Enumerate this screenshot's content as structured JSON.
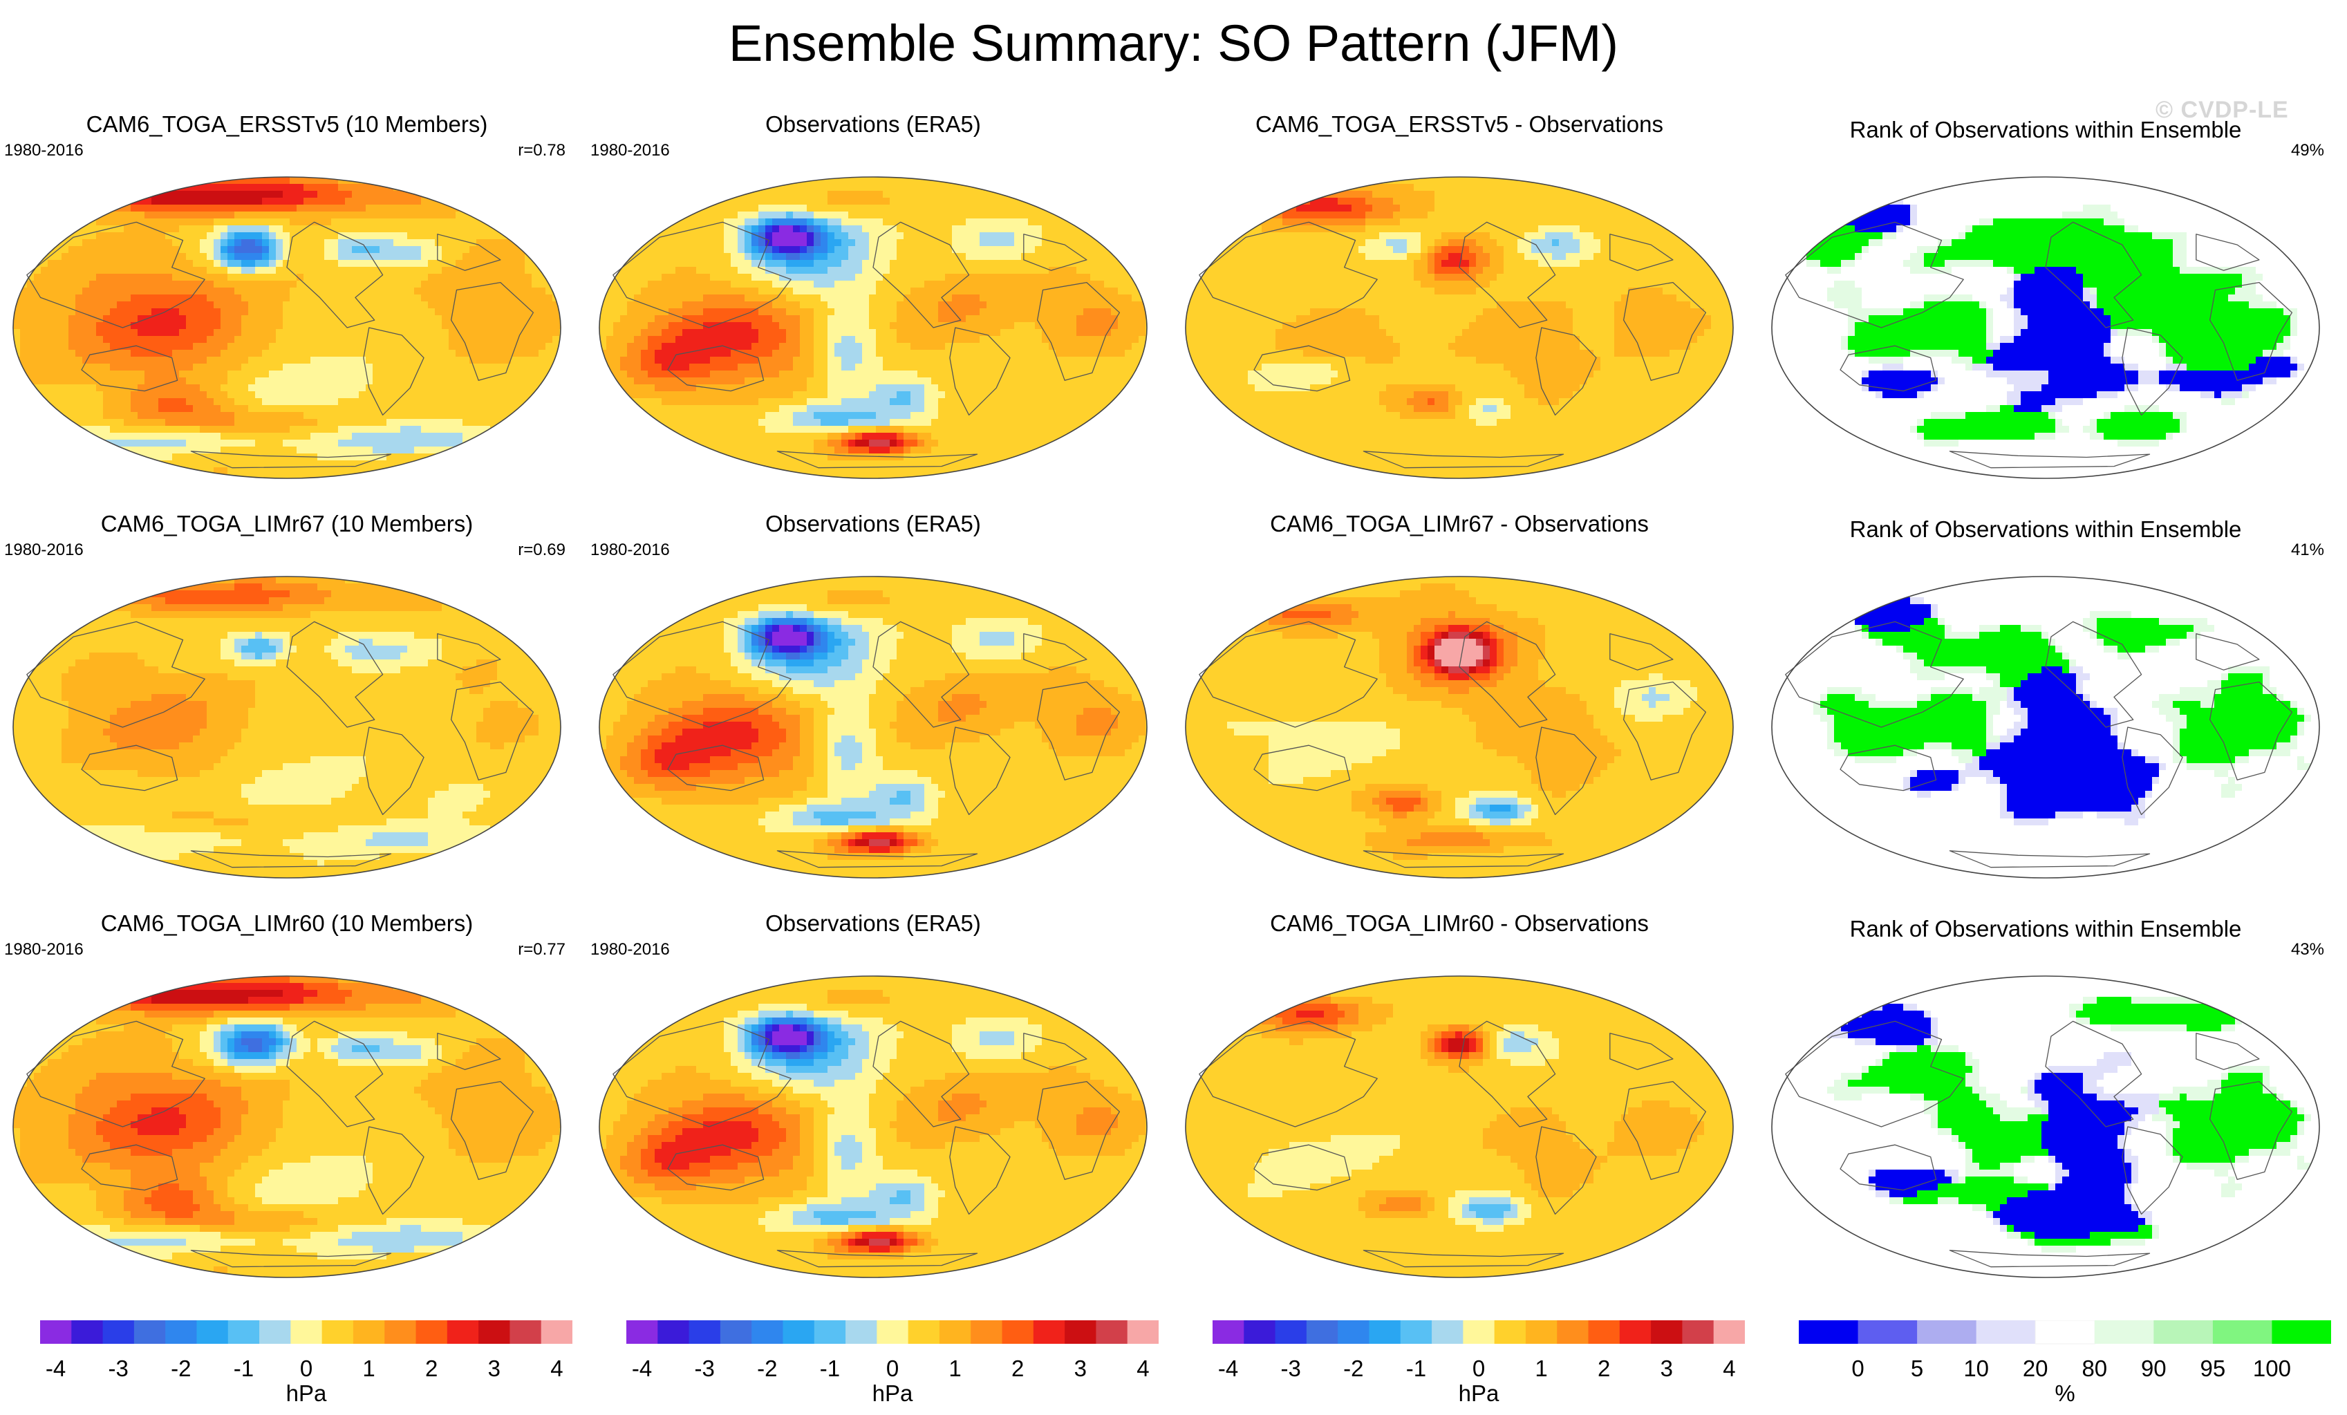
{
  "title": "Ensemble Summary: SO Pattern (JFM)",
  "watermark": "© CVDP-LE",
  "palette": {
    "hpa": [
      "#8a2be2",
      "#3b1bd9",
      "#2a3ee8",
      "#3f6fe0",
      "#2f86ee",
      "#2aa6f2",
      "#58c0f4",
      "#a8d8ee",
      "#fff79a",
      "#ffd12c",
      "#ffb41f",
      "#ff8e1c",
      "#ff5e12",
      "#f0221a",
      "#cc0f12",
      "#d2404a",
      "#f7a7a7"
    ],
    "pct": [
      "#0000f2",
      "#5e5ef0",
      "#adadf0",
      "#e0e0fa",
      "#ffffff",
      "#e3fbe3",
      "#b8f5b8",
      "#80f580",
      "#00f500"
    ]
  },
  "chart_data": {
    "type": "map_panel_grid",
    "rows": [
      {
        "model": {
          "title": "CAM6_TOGA_ERSSTv5 (10 Members)",
          "period": "1980-2016",
          "stat": "r=0.78",
          "variant": 0
        },
        "obs": {
          "title": "Observations (ERA5)",
          "period": "1980-2016",
          "variant": 1
        },
        "diff": {
          "title": "CAM6_TOGA_ERSSTv5 - Observations",
          "variant": 2
        },
        "rank": {
          "title": "Rank of Observations within Ensemble",
          "stat": "49%",
          "variant": 3
        }
      },
      {
        "model": {
          "title": "CAM6_TOGA_LIMr67 (10 Members)",
          "period": "1980-2016",
          "stat": "r=0.69",
          "variant": 4
        },
        "obs": {
          "title": "Observations (ERA5)",
          "period": "1980-2016",
          "variant": 1
        },
        "diff": {
          "title": "CAM6_TOGA_LIMr67 - Observations",
          "variant": 5
        },
        "rank": {
          "title": "Rank of Observations within Ensemble",
          "stat": "41%",
          "variant": 6
        }
      },
      {
        "model": {
          "title": "CAM6_TOGA_LIMr60 (10 Members)",
          "period": "1980-2016",
          "stat": "r=0.77",
          "variant": 7
        },
        "obs": {
          "title": "Observations (ERA5)",
          "period": "1980-2016",
          "variant": 1
        },
        "diff": {
          "title": "CAM6_TOGA_LIMr60 - Observations",
          "variant": 8
        },
        "rank": {
          "title": "Rank of Observations within Ensemble",
          "stat": "43%",
          "variant": 9
        }
      }
    ],
    "colorbars": [
      {
        "unit": "hPa",
        "ticks": [
          "-4",
          "-3",
          "-2",
          "-1",
          "0",
          "1",
          "2",
          "3",
          "4"
        ],
        "levels": [
          -4,
          -3.5,
          -3,
          -2.5,
          -2,
          -1.5,
          -1,
          -0.5,
          0,
          0.5,
          1,
          1.5,
          2,
          2.5,
          3,
          3.5,
          4
        ]
      },
      {
        "unit": "hPa",
        "ticks": [
          "-4",
          "-3",
          "-2",
          "-1",
          "0",
          "1",
          "2",
          "3",
          "4"
        ],
        "levels": [
          -4,
          -3.5,
          -3,
          -2.5,
          -2,
          -1.5,
          -1,
          -0.5,
          0,
          0.5,
          1,
          1.5,
          2,
          2.5,
          3,
          3.5,
          4
        ]
      },
      {
        "unit": "hPa",
        "ticks": [
          "-4",
          "-3",
          "-2",
          "-1",
          "0",
          "1",
          "2",
          "3",
          "4"
        ],
        "levels": [
          -4,
          -3.5,
          -3,
          -2.5,
          -2,
          -1.5,
          -1,
          -0.5,
          0,
          0.5,
          1,
          1.5,
          2,
          2.5,
          3,
          3.5,
          4
        ]
      },
      {
        "unit": "%",
        "ticks": [
          "0",
          "5",
          "10",
          "20",
          "80",
          "90",
          "95",
          "100"
        ],
        "levels": [
          0,
          5,
          10,
          20,
          80,
          90,
          95,
          100
        ]
      }
    ]
  }
}
